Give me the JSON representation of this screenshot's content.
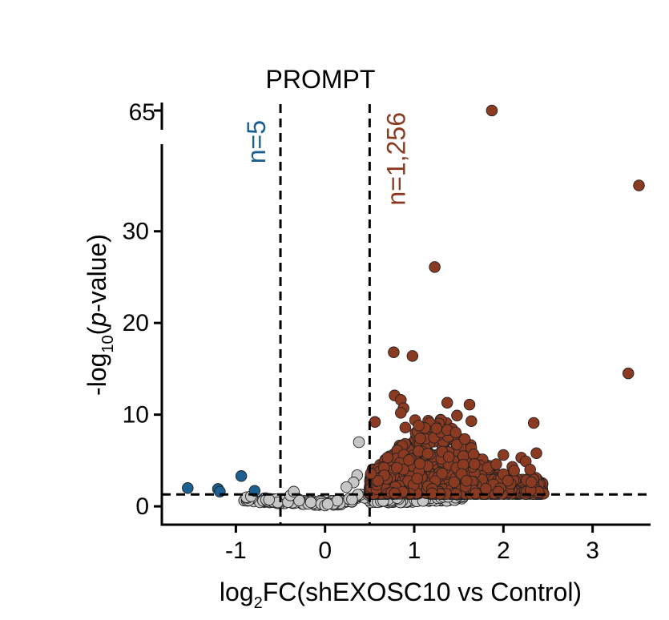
{
  "chart_data": {
    "type": "scatter",
    "title": "PROMPT",
    "xlabel": {
      "prefix": "log",
      "subscript": "2",
      "suffix": "FC(shEXOSC10 vs Control)"
    },
    "ylabel": {
      "prefix": "-log",
      "subscript": "10",
      "open": "(",
      "italic": "p",
      "suffix": "-value)"
    },
    "xlim": [
      -1.83,
      3.65
    ],
    "ylim_lower": [
      -2.0,
      39.5
    ],
    "ylim_upper_break": 65,
    "x_ticks": [
      -1,
      0,
      1,
      2,
      3
    ],
    "x_tick_labels": [
      "-1",
      "0",
      "1",
      "2",
      "3"
    ],
    "y_ticks": [
      0,
      10,
      20,
      30
    ],
    "y_tick_labels": [
      "0",
      "10",
      "20",
      "30"
    ],
    "y_break_tick_label": "65",
    "thresholds": {
      "fc": [
        -0.5,
        0.5
      ],
      "p": 1.3
    },
    "annotations": {
      "down_count": "n=5",
      "up_count": "n=1,256"
    },
    "colors": {
      "down": "#1a5f8f",
      "up": "#8b3a22",
      "ns": "#c6c6c6",
      "edge": "#222222",
      "down_text": "#1a5f8f",
      "up_text": "#8b3a22"
    },
    "series": [
      {
        "group": "down",
        "points": [
          [
            -1.54,
            2.0
          ],
          [
            -1.2,
            1.9
          ],
          [
            -1.18,
            1.6
          ],
          [
            -0.94,
            3.3
          ],
          [
            -0.79,
            1.7
          ]
        ]
      },
      {
        "group": "up_labeled",
        "points": [
          [
            1.87,
            65
          ],
          [
            3.52,
            35.0
          ],
          [
            1.23,
            26.1
          ],
          [
            0.77,
            16.8
          ],
          [
            0.98,
            16.4
          ],
          [
            3.4,
            14.5
          ],
          [
            0.78,
            12.1
          ],
          [
            0.85,
            11.6
          ],
          [
            0.88,
            10.7
          ],
          [
            0.85,
            10.2
          ],
          [
            1.37,
            11.3
          ],
          [
            1.62,
            11.1
          ],
          [
            0.56,
            9.2
          ],
          [
            2.34,
            9.1
          ],
          [
            1.48,
            9.9
          ],
          [
            1.64,
            9.3
          ],
          [
            1.01,
            9.4
          ],
          [
            1.05,
            8.8
          ],
          [
            0.9,
            8.6
          ],
          [
            1.25,
            8.5
          ],
          [
            2.0,
            5.6
          ],
          [
            2.2,
            5.3
          ],
          [
            2.37,
            5.8
          ],
          [
            2.25,
            4.9
          ],
          [
            2.1,
            4.3
          ],
          [
            1.92,
            4.6
          ],
          [
            2.3,
            4.0
          ],
          [
            2.0,
            3.5
          ],
          [
            2.12,
            3.9
          ],
          [
            2.05,
            2.8
          ]
        ]
      },
      {
        "group": "ns_labeled",
        "points": [
          [
            0.38,
            7.0
          ],
          [
            0.36,
            3.4
          ],
          [
            0.32,
            2.6
          ],
          [
            0.24,
            2.1
          ],
          [
            -0.39,
            1.2
          ],
          [
            -0.35,
            1.6
          ],
          [
            -0.88,
            1.0
          ],
          [
            -0.83,
            1.1
          ],
          [
            1.5,
            1.2
          ],
          [
            1.38,
            1.05
          ],
          [
            0.0,
            0.1
          ],
          [
            0.03,
            0.25
          ]
        ]
      }
    ],
    "generated_clouds": {
      "up": {
        "count": 1200,
        "x_range": [
          0.5,
          2.45
        ],
        "p_floor": 1.3
      },
      "ns": {
        "count": 300,
        "x_range": [
          -0.92,
          1.55
        ]
      }
    },
    "grid": false,
    "legend": "none"
  }
}
